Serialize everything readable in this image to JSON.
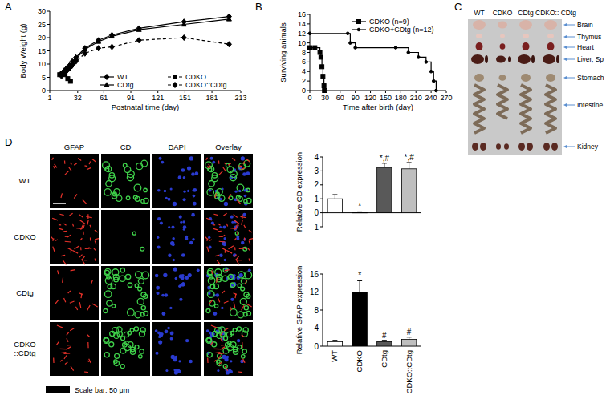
{
  "figure": {
    "panel_labels": [
      "A",
      "B",
      "C",
      "D"
    ]
  },
  "chart_data": [
    {
      "type": "line",
      "x_label": "Postnatal time (day)",
      "y_label": "Body Weight (g)",
      "xlim": [
        1,
        213
      ],
      "xticks": [
        1,
        32,
        61,
        91,
        121,
        151,
        181,
        213
      ],
      "ylim": [
        0,
        30
      ],
      "yticks": [
        0,
        5,
        10,
        15,
        20,
        25,
        30
      ],
      "legend": "lower right",
      "series": [
        {
          "name": "WT",
          "color": "#000000",
          "marker": "diamond",
          "line_style": "solid",
          "x": [
            14,
            17,
            20,
            23,
            26,
            30,
            40,
            55,
            70,
            100,
            150,
            200
          ],
          "values": [
            6.5,
            7.5,
            8.5,
            9.5,
            11,
            12.5,
            16,
            19,
            21,
            23.5,
            26,
            28
          ]
        },
        {
          "name": "CDKO",
          "color": "#000000",
          "marker": "square",
          "line_style": "dashed",
          "x": [
            12,
            15,
            18,
            21,
            24
          ],
          "values": [
            6,
            6.5,
            6,
            4.5,
            3.5
          ]
        },
        {
          "name": "CDtg",
          "color": "#000000",
          "marker": "triangle",
          "line_style": "solid",
          "x": [
            14,
            17,
            20,
            23,
            26,
            30,
            40,
            55,
            70,
            100,
            150,
            200
          ],
          "values": [
            6,
            7,
            8,
            9,
            10.5,
            12,
            15.5,
            18.5,
            20.5,
            23,
            25,
            27
          ]
        },
        {
          "name": "CDKO::CDtg",
          "color": "#000000",
          "marker": "diamond",
          "line_style": "dashed",
          "x": [
            14,
            17,
            20,
            23,
            26,
            30,
            40,
            55,
            70,
            100,
            150,
            200
          ],
          "values": [
            5.5,
            6.5,
            7.5,
            8.5,
            9.5,
            11,
            14,
            16,
            16.5,
            19,
            20,
            17.5
          ]
        }
      ]
    },
    {
      "type": "line",
      "x_label": "Time after birth (day)",
      "y_label": "Surviving animals",
      "xlim": [
        0,
        270
      ],
      "xticks": [
        0,
        30,
        60,
        90,
        120,
        150,
        180,
        210,
        240,
        270
      ],
      "ylim": [
        0,
        16
      ],
      "yticks": [
        0,
        2,
        4,
        6,
        8,
        10,
        12,
        14,
        16
      ],
      "legend": "upper right",
      "series": [
        {
          "name": "CDKO (n=9)",
          "color": "#000000",
          "marker": "square",
          "line_style": "step",
          "x": [
            0,
            10,
            20,
            22,
            24,
            26,
            28,
            29
          ],
          "values": [
            9,
            9,
            8,
            7,
            5,
            3,
            1,
            0
          ]
        },
        {
          "name": "CDKO+CDtg (n=12)",
          "color": "#000000",
          "marker": "circle",
          "line_style": "step",
          "x": [
            0,
            75,
            80,
            90,
            170,
            195,
            215,
            230,
            240,
            245,
            250
          ],
          "values": [
            12,
            12,
            10,
            9,
            9,
            8,
            7,
            6,
            4,
            2,
            0
          ]
        }
      ]
    },
    {
      "type": "bar",
      "y_label": "Relative CD expression",
      "categories": [
        null,
        null,
        null,
        null
      ],
      "values": [
        1,
        0.02,
        3.25,
        3.15
      ],
      "errors": [
        0.3,
        0.05,
        0.3,
        0.45
      ],
      "annotations": [
        null,
        "*",
        "*,#",
        "*,#"
      ],
      "colors": [
        "#ffffff",
        "#000000",
        "#595959",
        "#bfbfbf"
      ],
      "ylim": [
        -1,
        4
      ],
      "yticks": [
        -1,
        0,
        1,
        2,
        3,
        4
      ],
      "tick_labels": "y"
    },
    {
      "type": "bar",
      "y_label": "Relative GFAP expression",
      "categories": [
        "WT",
        "CDKO",
        "CDtg",
        "CDKO::CDtg"
      ],
      "values": [
        1,
        12,
        1,
        1.5
      ],
      "errors": [
        0.3,
        2.5,
        0.3,
        0.5
      ],
      "annotations": [
        null,
        "*",
        "#",
        "#"
      ],
      "colors": [
        "#ffffff",
        "#000000",
        "#595959",
        "#bfbfbf"
      ],
      "ylim": [
        0,
        16
      ],
      "yticks": [
        0,
        4,
        8,
        12,
        16
      ]
    }
  ],
  "photo": {
    "columns": [
      "WT",
      "CDKO",
      "CDtg",
      "CDKO:: CDtg"
    ],
    "organs": [
      "Brain",
      "Thymus",
      "Heart",
      "Liver, Sp",
      "Stomach",
      "Intestine",
      "Kidney"
    ]
  },
  "micrograph": {
    "stains": [
      "GFAP",
      "CD",
      "DAPI",
      "Overlay"
    ],
    "rows": [
      "WT",
      "CDKO",
      "CDtg",
      "CDKO ::CDtg"
    ],
    "scale_bar": "Scale bar: 50 μm"
  }
}
